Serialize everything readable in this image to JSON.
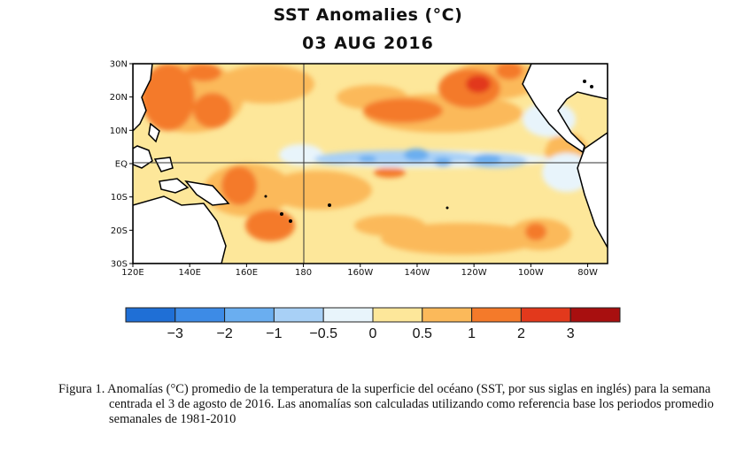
{
  "title": "SST Anomalies (°C)",
  "date": "03 AUG 2016",
  "lat_labels": [
    "30N",
    "20N",
    "10N",
    "EQ",
    "10S",
    "20S",
    "30S"
  ],
  "lon_labels": [
    "120E",
    "140E",
    "160E",
    "180",
    "160W",
    "140W",
    "120W",
    "100W",
    "80W"
  ],
  "colorbar": {
    "labels": [
      "−3",
      "−2",
      "−1",
      "−0.5",
      "0",
      "0.5",
      "1",
      "2",
      "3"
    ],
    "colors": [
      "#1f6fd6",
      "#3d8be6",
      "#6aaef0",
      "#a8d0f6",
      "#e8f4fb",
      "#fde79a",
      "#fbb95a",
      "#f47a2a",
      "#e2391c",
      "#a80f0f"
    ]
  },
  "palette": {
    "land": "#ffffff",
    "coast": "#000000"
  },
  "caption": "Figura 1. Anomalías (°C) promedio de la temperatura de la superficie del océano (SST, por sus siglas en inglés) para la semana centrada el 3 de agosto de 2016. Las anomalías son calculadas utilizando como referencia base los periodos promedio semanales de 1981-2010"
}
